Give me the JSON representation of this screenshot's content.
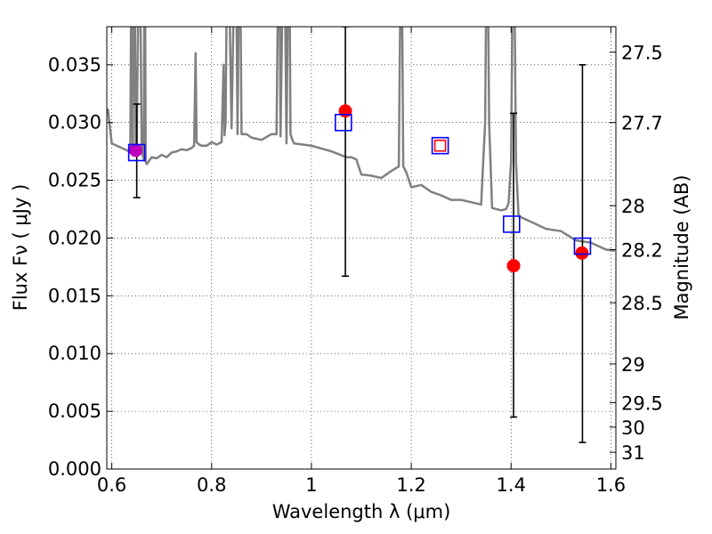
{
  "chart_data": {
    "type": "scatter",
    "xlabel": "Wavelength  λ (μm)",
    "ylabel": "Flux  Fν  ( μJy )",
    "y2label": "Magnitude (AB)",
    "xlim": [
      0.59,
      1.61
    ],
    "ylim": [
      0.0,
      0.0383
    ],
    "grid": true,
    "grid_style": "dotted",
    "x_ticks": [
      {
        "value": 0.6,
        "label": "0.6"
      },
      {
        "value": 0.8,
        "label": "0.8"
      },
      {
        "value": 1.0,
        "label": "1"
      },
      {
        "value": 1.2,
        "label": "1.2"
      },
      {
        "value": 1.4,
        "label": "1.4"
      },
      {
        "value": 1.6,
        "label": "1.6"
      }
    ],
    "y_ticks": [
      {
        "value": 0.0,
        "label": "0.000"
      },
      {
        "value": 0.005,
        "label": "0.005"
      },
      {
        "value": 0.01,
        "label": "0.010"
      },
      {
        "value": 0.015,
        "label": "0.015"
      },
      {
        "value": 0.02,
        "label": "0.020"
      },
      {
        "value": 0.025,
        "label": "0.025"
      },
      {
        "value": 0.03,
        "label": "0.030"
      },
      {
        "value": 0.035,
        "label": "0.035"
      }
    ],
    "y2_ticks": [
      {
        "label": "27.5",
        "flux": 0.0361
      },
      {
        "label": "27.7",
        "flux": 0.03
      },
      {
        "label": "28",
        "flux": 0.0228
      },
      {
        "label": "28.2",
        "flux": 0.019
      },
      {
        "label": "28.5",
        "flux": 0.0144
      },
      {
        "label": "29",
        "flux": 0.0091
      },
      {
        "label": "29.5",
        "flux": 0.00575
      },
      {
        "label": "30",
        "flux": 0.00363
      },
      {
        "label": "31",
        "flux": 0.00145
      }
    ],
    "series": [
      {
        "kind": "line",
        "color": "#808080",
        "x": [
          0.592,
          0.6,
          0.61,
          0.62,
          0.63,
          0.637,
          0.64,
          0.642,
          0.645,
          0.648,
          0.65,
          0.655,
          0.66,
          0.664,
          0.666,
          0.668,
          0.67,
          0.68,
          0.69,
          0.7,
          0.71,
          0.72,
          0.73,
          0.74,
          0.75,
          0.76,
          0.765,
          0.768,
          0.77,
          0.775,
          0.78,
          0.79,
          0.8,
          0.81,
          0.82,
          0.824,
          0.826,
          0.828,
          0.832,
          0.84,
          0.848,
          0.852,
          0.856,
          0.86,
          0.87,
          0.88,
          0.9,
          0.92,
          0.93,
          0.935,
          0.938,
          0.945,
          0.95,
          0.955,
          0.958,
          0.962,
          0.965,
          1.0,
          1.04,
          1.07,
          1.08,
          1.09,
          1.1,
          1.12,
          1.14,
          1.16,
          1.175,
          1.18,
          1.184,
          1.19,
          1.2,
          1.22,
          1.24,
          1.26,
          1.28,
          1.3,
          1.32,
          1.34,
          1.348,
          1.352,
          1.356,
          1.362,
          1.38,
          1.39,
          1.395,
          1.4,
          1.405,
          1.41,
          1.415,
          1.42,
          1.44,
          1.47,
          1.5,
          1.53,
          1.56,
          1.59,
          1.608
        ],
        "y": [
          0.0312,
          0.0282,
          0.028,
          0.0278,
          0.0276,
          0.0274,
          0.05,
          0.0275,
          0.05,
          0.0275,
          0.0275,
          0.05,
          0.0275,
          0.0268,
          0.05,
          0.0266,
          0.0264,
          0.027,
          0.0269,
          0.0272,
          0.027,
          0.0274,
          0.0275,
          0.0277,
          0.0276,
          0.0278,
          0.028,
          0.036,
          0.0283,
          0.0281,
          0.028,
          0.028,
          0.0283,
          0.0281,
          0.0283,
          0.035,
          0.0289,
          0.03,
          0.05,
          0.0295,
          0.05,
          0.029,
          0.05,
          0.029,
          0.029,
          0.0287,
          0.0285,
          0.029,
          0.029,
          0.05,
          0.0288,
          0.05,
          0.0282,
          0.05,
          0.029,
          0.0285,
          0.0282,
          0.028,
          0.0275,
          0.027,
          0.027,
          0.0268,
          0.0255,
          0.0254,
          0.0252,
          0.0258,
          0.0262,
          0.05,
          0.0262,
          0.0257,
          0.0244,
          0.0246,
          0.024,
          0.0237,
          0.0233,
          0.0233,
          0.0231,
          0.0229,
          0.03,
          0.05,
          0.03,
          0.0226,
          0.0224,
          0.0225,
          0.023,
          0.0265,
          0.05,
          0.0265,
          0.022,
          0.0218,
          0.0214,
          0.0208,
          0.0206,
          0.0198,
          0.0196,
          0.019,
          0.0189
        ]
      },
      {
        "kind": "points",
        "marker": "circle",
        "color": "#ff0000",
        "x": [
          0.648,
          1.068,
          1.405,
          1.542
        ],
        "y": [
          0.0276,
          0.031,
          0.0176,
          0.0187
        ]
      },
      {
        "kind": "points",
        "marker": "circle",
        "color": "#bf00bf",
        "x": [
          0.648
        ],
        "y": [
          0.0276
        ]
      },
      {
        "kind": "points",
        "marker": "square",
        "color": "#0000ff",
        "x": [
          0.65,
          1.064,
          1.258,
          1.401,
          1.543
        ],
        "y": [
          0.0274,
          0.03,
          0.028,
          0.0212,
          0.0193
        ]
      },
      {
        "kind": "points",
        "marker": "square",
        "color": "#ff0000",
        "x": [
          1.258
        ],
        "y": [
          0.028
        ]
      },
      {
        "kind": "errorbars",
        "color": "#000000",
        "x": [
          0.65,
          1.068,
          1.405,
          1.543
        ],
        "ylow": [
          0.0235,
          0.0167,
          0.0045,
          0.0023
        ],
        "yhigh": [
          0.0316,
          0.0383,
          0.0308,
          0.035
        ]
      }
    ]
  }
}
